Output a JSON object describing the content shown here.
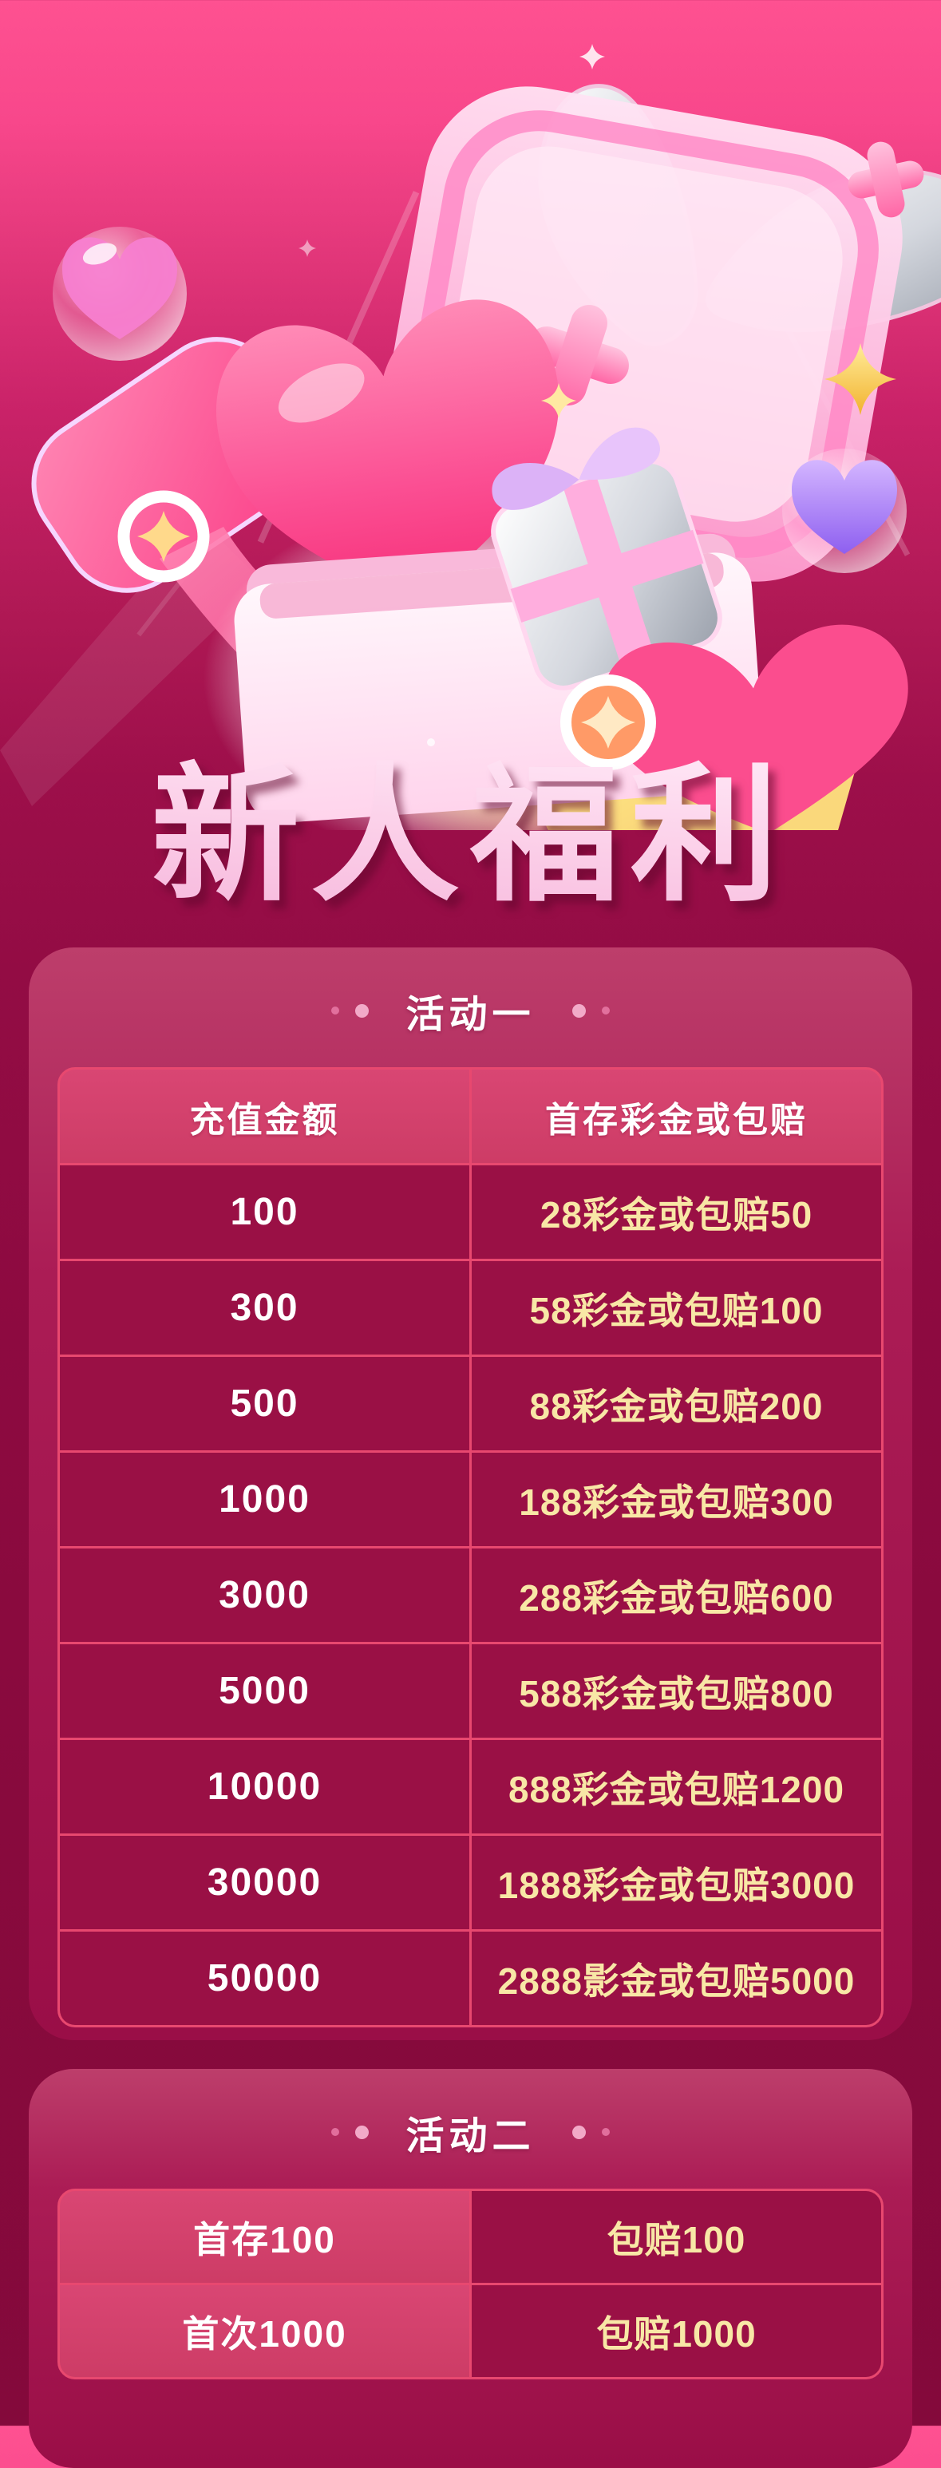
{
  "page": {
    "title": "新人福利"
  },
  "sections": [
    {
      "label": "活动一",
      "table": {
        "headers": [
          "充值金额",
          "首存彩金或包赔"
        ],
        "rows": [
          [
            "100",
            "28彩金或包赔50"
          ],
          [
            "300",
            "58彩金或包赔100"
          ],
          [
            "500",
            "88彩金或包赔200"
          ],
          [
            "1000",
            "188彩金或包赔300"
          ],
          [
            "3000",
            "288彩金或包赔600"
          ],
          [
            "5000",
            "588彩金或包赔800"
          ],
          [
            "10000",
            "888彩金或包赔1200"
          ],
          [
            "30000",
            "1888彩金或包赔3000"
          ],
          [
            "50000",
            "2888影金或包赔5000"
          ]
        ]
      }
    },
    {
      "label": "活动二",
      "table": {
        "headers": [],
        "rows": [
          [
            "首存100",
            "包赔100"
          ],
          [
            "首次1000",
            "包赔1000"
          ]
        ]
      }
    }
  ],
  "hero_icons": [
    "gift-box",
    "gift-lid",
    "silver-bow",
    "glossy-heart",
    "gold-coin",
    "pink-tag",
    "heart-bubble",
    "purple-heart-bubble",
    "plus-sparkle",
    "gold-sparkle",
    "mini-gift",
    "heart-badge",
    "yellow-card"
  ],
  "colors": {
    "bg_top": "#fd4f90",
    "bg_mid": "#b01955",
    "bg_deep": "#84093b",
    "panel_top": "#bd3e6b",
    "panel_bottom": "#9a0e47",
    "line_pink": "#e8486f",
    "header_pink": "#d94673",
    "row_bg": "#9a1045",
    "value_yellow": "#f8e7a6",
    "text_white": "#ffffff",
    "title_pink": "#fcd2ea"
  }
}
